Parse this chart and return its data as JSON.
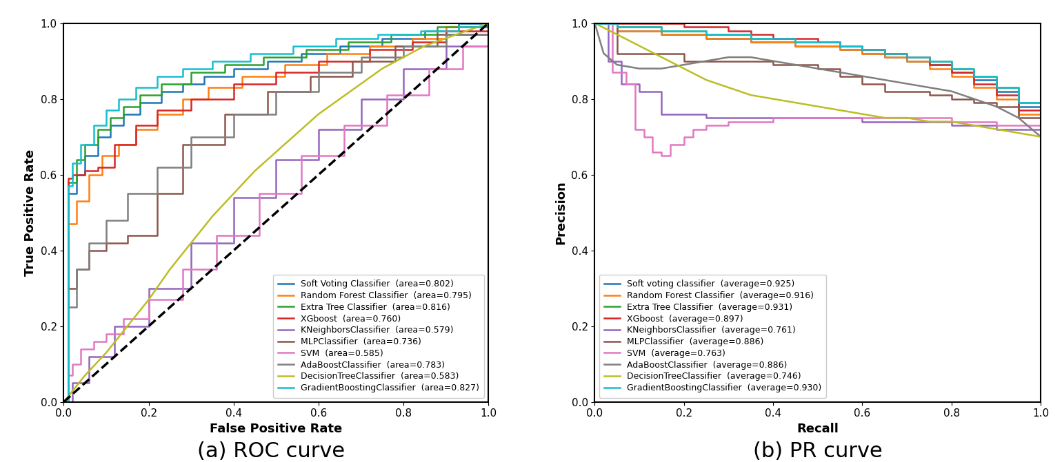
{
  "classifiers_roc": [
    "Soft Voting Classifier",
    "Random Forest Classifier",
    "Extra Tree Classifier",
    "XGboost",
    "KNeighborsClassifier",
    "MLPClassifier",
    "SVM",
    "AdaBoostClassifier",
    "DecisionTreeClassifier",
    "GradientBoostingClassifier"
  ],
  "classifiers_pr": [
    "Soft voting classifier",
    "Random Forest Classifier",
    "Extra Tree Classifier",
    "XGboost",
    "KNeighborsClassifier",
    "MLPClassifier",
    "SVM",
    "AdaBoostClassifier",
    "DecisionTreeClassifier",
    "GradientBoostingClassifier"
  ],
  "colors": [
    "#1f77b4",
    "#ff7f0e",
    "#2ca02c",
    "#d62728",
    "#9467bd",
    "#8c564b",
    "#e377c2",
    "#7f7f7f",
    "#bcbd22",
    "#17becf"
  ],
  "roc_areas": [
    0.802,
    0.795,
    0.816,
    0.76,
    0.579,
    0.736,
    0.585,
    0.783,
    0.583,
    0.827
  ],
  "pr_averages": [
    0.925,
    0.916,
    0.931,
    0.897,
    0.761,
    0.886,
    0.763,
    0.886,
    0.746,
    0.93
  ],
  "roc_xlabel": "False Positive Rate",
  "roc_ylabel": "True Positive Rate",
  "pr_xlabel": "Recall",
  "pr_ylabel": "Precision",
  "caption_roc": "(a) ROC curve",
  "caption_pr": "(b) PR curve",
  "caption_fontsize": 22,
  "tick_fontsize": 11,
  "label_fontsize": 13,
  "legend_fontsize": 9
}
